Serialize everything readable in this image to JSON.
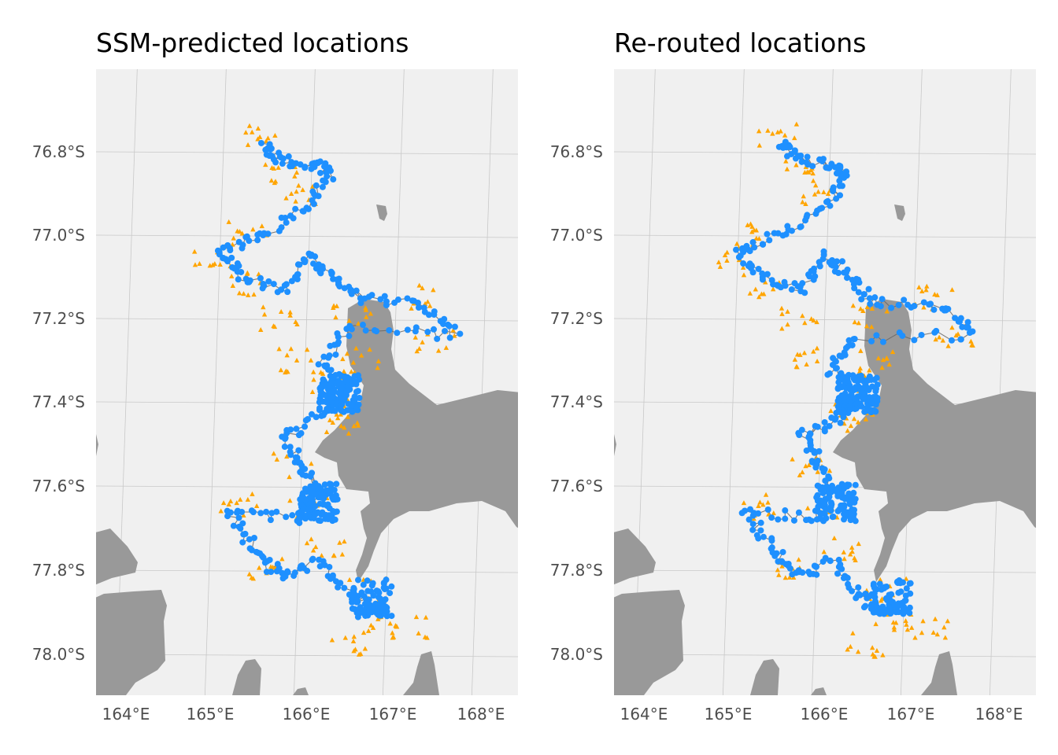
{
  "chart_data": [
    {
      "type": "scatter",
      "title": "SSM-predicted locations",
      "xlabel": "",
      "ylabel": "",
      "x_ticks": [
        "164°E",
        "165°E",
        "166°E",
        "167°E",
        "168°E"
      ],
      "y_ticks": [
        "76.8°S",
        "77.0°S",
        "77.2°S",
        "77.4°S",
        "77.6°S",
        "77.8°S",
        "78.0°S"
      ],
      "xlim": [
        163.8,
        168.55
      ],
      "ylim": [
        -78.1,
        -76.6
      ],
      "grid": true,
      "legend": "none",
      "colors": {
        "observed": "#FFA500",
        "predicted": "#1E90FF",
        "track": "#666666",
        "land": "#999999",
        "panel": "#F0F0F0"
      },
      "series": [
        {
          "points": [
            [
              165.4,
              -76.76
            ],
            [
              165.7,
              -76.85
            ],
            [
              165.9,
              -76.9
            ],
            [
              165.3,
              -77.0
            ],
            [
              164.9,
              -77.05
            ],
            [
              165.3,
              -77.12
            ],
            [
              165.7,
              -77.2
            ],
            [
              165.85,
              -77.3
            ],
            [
              166.3,
              -77.35
            ],
            [
              166.6,
              -77.3
            ],
            [
              166.5,
              -77.2
            ],
            [
              167.2,
              -77.15
            ],
            [
              167.45,
              -77.25
            ],
            [
              166.3,
              -77.42
            ],
            [
              166.4,
              -77.45
            ],
            [
              165.9,
              -77.55
            ],
            [
              166.1,
              -77.65
            ],
            [
              165.3,
              -77.65
            ],
            [
              165.6,
              -77.8
            ],
            [
              166.3,
              -77.75
            ],
            [
              166.8,
              -77.85
            ],
            [
              166.9,
              -77.92
            ],
            [
              167.3,
              -77.94
            ],
            [
              166.6,
              -77.98
            ]
          ]
        },
        {
          "points": [
            [
              165.45,
              -76.78
            ],
            [
              165.6,
              -76.82
            ],
            [
              166.0,
              -76.83
            ],
            [
              166.2,
              -76.85
            ],
            [
              166.0,
              -76.93
            ],
            [
              165.5,
              -77.0
            ],
            [
              165.0,
              -77.04
            ],
            [
              165.25,
              -77.1
            ],
            [
              165.75,
              -77.13
            ],
            [
              166.0,
              -77.05
            ],
            [
              166.25,
              -77.1
            ],
            [
              166.6,
              -77.15
            ],
            [
              167.3,
              -77.17
            ],
            [
              167.7,
              -77.24
            ],
            [
              166.5,
              -77.22
            ],
            [
              166.2,
              -77.3
            ],
            [
              166.5,
              -77.38
            ],
            [
              166.3,
              -77.42
            ],
            [
              165.8,
              -77.48
            ],
            [
              166.0,
              -77.55
            ],
            [
              166.2,
              -77.62
            ],
            [
              166.0,
              -77.68
            ],
            [
              165.2,
              -77.66
            ],
            [
              165.5,
              -77.75
            ],
            [
              165.8,
              -77.82
            ],
            [
              166.2,
              -77.78
            ],
            [
              166.6,
              -77.86
            ],
            [
              166.9,
              -77.9
            ],
            [
              167.0,
              -77.89
            ]
          ]
        }
      ]
    },
    {
      "type": "scatter",
      "title": "Re-routed locations",
      "xlabel": "",
      "ylabel": "",
      "x_ticks": [
        "164°E",
        "165°E",
        "166°E",
        "167°E",
        "168°E"
      ],
      "y_ticks": [
        "76.8°S",
        "77.0°S",
        "77.2°S",
        "77.4°S",
        "77.6°S",
        "77.8°S",
        "78.0°S"
      ],
      "xlim": [
        163.8,
        168.55
      ],
      "ylim": [
        -78.1,
        -76.6
      ],
      "grid": true,
      "legend": "none",
      "colors": {
        "observed": "#FFA500",
        "predicted": "#1E90FF",
        "track": "#666666",
        "land": "#999999",
        "panel": "#F0F0F0"
      },
      "series": [
        {
          "points": [
            [
              165.4,
              -76.76
            ],
            [
              165.7,
              -76.85
            ],
            [
              165.9,
              -76.9
            ],
            [
              165.3,
              -77.0
            ],
            [
              164.9,
              -77.05
            ],
            [
              165.3,
              -77.12
            ],
            [
              165.7,
              -77.2
            ],
            [
              165.85,
              -77.3
            ],
            [
              166.3,
              -77.35
            ],
            [
              166.6,
              -77.3
            ],
            [
              166.5,
              -77.2
            ],
            [
              167.2,
              -77.15
            ],
            [
              167.45,
              -77.25
            ],
            [
              166.3,
              -77.42
            ],
            [
              166.4,
              -77.45
            ],
            [
              165.9,
              -77.55
            ],
            [
              166.1,
              -77.65
            ],
            [
              165.3,
              -77.65
            ],
            [
              165.6,
              -77.8
            ],
            [
              166.3,
              -77.75
            ],
            [
              166.8,
              -77.85
            ],
            [
              166.9,
              -77.92
            ],
            [
              167.3,
              -77.94
            ],
            [
              166.6,
              -77.98
            ]
          ]
        },
        {
          "points": [
            [
              165.45,
              -76.78
            ],
            [
              165.6,
              -76.82
            ],
            [
              166.0,
              -76.83
            ],
            [
              166.2,
              -76.85
            ],
            [
              166.0,
              -76.93
            ],
            [
              165.5,
              -77.0
            ],
            [
              165.0,
              -77.04
            ],
            [
              165.25,
              -77.1
            ],
            [
              165.75,
              -77.13
            ],
            [
              166.0,
              -77.05
            ],
            [
              166.25,
              -77.1
            ],
            [
              166.5,
              -77.16
            ],
            [
              167.3,
              -77.17
            ],
            [
              167.7,
              -77.24
            ],
            [
              166.3,
              -77.25
            ],
            [
              166.1,
              -77.32
            ],
            [
              166.3,
              -77.4
            ],
            [
              166.2,
              -77.44
            ],
            [
              165.8,
              -77.48
            ],
            [
              166.0,
              -77.55
            ],
            [
              166.1,
              -77.62
            ],
            [
              166.0,
              -77.68
            ],
            [
              165.2,
              -77.66
            ],
            [
              165.5,
              -77.75
            ],
            [
              165.8,
              -77.82
            ],
            [
              166.2,
              -77.78
            ],
            [
              166.5,
              -77.86
            ],
            [
              166.7,
              -77.9
            ],
            [
              167.0,
              -77.89
            ]
          ]
        }
      ]
    }
  ]
}
